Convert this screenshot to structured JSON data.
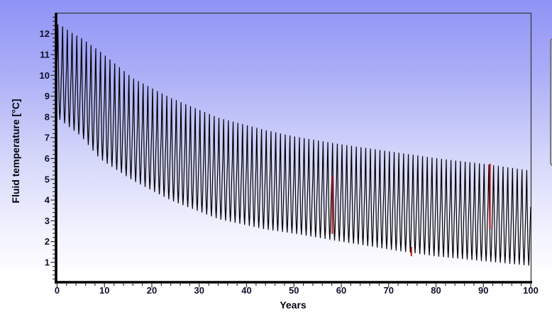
{
  "chart_data": {
    "type": "line",
    "title": "",
    "xlabel": "Years",
    "ylabel": "Fluid temperature [°C]",
    "xlim": [
      0,
      100
    ],
    "ylim": [
      0,
      13
    ],
    "x_ticks": [
      0,
      10,
      20,
      30,
      40,
      50,
      60,
      70,
      80,
      90,
      100
    ],
    "x_minor_step": 2,
    "y_ticks": [
      1,
      2,
      3,
      4,
      5,
      6,
      7,
      8,
      9,
      10,
      11,
      12
    ],
    "y_minor_step": 0.2,
    "grid": false,
    "legend": "none",
    "line_color": "#000000",
    "marker_color": "#c80000",
    "tick_label_color": "#10102c",
    "series_description": "Monthly fluid temperature oscillating each year between a decaying peak envelope and a decaying trough envelope over 100 years",
    "envelope": {
      "years": [
        0,
        0.8,
        3,
        5,
        9,
        16,
        24,
        34,
        44,
        50,
        59,
        71,
        80,
        91,
        100
      ],
      "peak": [
        12.45,
        12.4,
        12.05,
        11.8,
        11.15,
        9.85,
        8.9,
        7.95,
        7.35,
        7.05,
        6.7,
        6.3,
        6.0,
        5.7,
        5.4
      ],
      "trough": [
        7.95,
        7.85,
        7.45,
        7.1,
        6.0,
        4.95,
        4.0,
        3.1,
        2.6,
        2.4,
        2.05,
        1.6,
        1.3,
        1.05,
        0.85
      ]
    },
    "samples_per_year": 12,
    "monthly_profile": [
      0.62,
      0.85,
      1.0,
      0.7,
      0.42,
      0.2,
      0.07,
      0.0,
      0.08,
      0.22,
      0.38,
      0.5
    ],
    "start_value": 10.8,
    "peak_load_markers": [
      {
        "year": 58.1,
        "v_from": 2.37,
        "v_to": 5.18
      },
      {
        "year": 74.8,
        "v_from": 1.3,
        "v_to": 1.75
      },
      {
        "year": 91.4,
        "v_from": 2.6,
        "v_to": 5.75
      }
    ]
  },
  "frame": {
    "thin_border_color": "#3a3a3a",
    "axis_color": "#000000",
    "tick_color": "#2a2a2a"
  },
  "side_panel": {
    "border_color": "#7b7b7b"
  }
}
